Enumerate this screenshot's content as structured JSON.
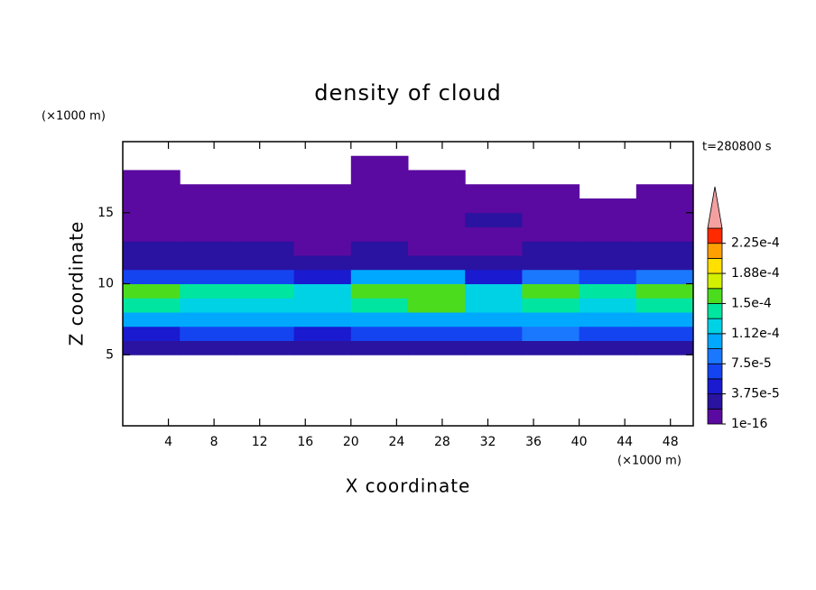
{
  "chart_data": {
    "type": "contour",
    "title": "density of cloud",
    "xlabel": "X coordinate",
    "ylabel": "Z coordinate",
    "x_unit": "(×1000 m)",
    "y_unit": "(×1000 m)",
    "time_label": "t=280800 s",
    "xlim": [
      0,
      50
    ],
    "ylim": [
      0,
      20
    ],
    "xticks": [
      4,
      8,
      12,
      16,
      20,
      24,
      28,
      32,
      36,
      40,
      44,
      48
    ],
    "yticks": [
      5,
      10,
      15
    ],
    "x": [
      2.5,
      7.5,
      12.5,
      17.5,
      22.5,
      27.5,
      32.5,
      37.5,
      42.5,
      47.5
    ],
    "z": [
      5.5,
      6.5,
      7.5,
      8.5,
      9.5,
      10.5,
      11.5,
      12.5,
      13.5,
      14.5,
      15.5,
      16.5,
      17.5,
      18.5
    ],
    "values": [
      [
        2e-05,
        2e-05,
        2.5e-05,
        2e-05,
        3e-05,
        2e-05,
        2e-05,
        3e-05,
        2e-05,
        2e-05
      ],
      [
        5e-05,
        6e-05,
        6e-05,
        5e-05,
        7e-05,
        6e-05,
        6e-05,
        8e-05,
        6e-05,
        6e-05
      ],
      [
        0.00011,
        0.0001,
        0.000105,
        0.0001,
        0.00011,
        0.00011,
        0.0001,
        0.00011,
        0.000105,
        0.00011
      ],
      [
        0.00014,
        0.00013,
        0.00013,
        0.000125,
        0.00014,
        0.00015,
        0.00013,
        0.00014,
        0.00013,
        0.00014
      ],
      [
        0.00016,
        0.00014,
        0.000135,
        0.00013,
        0.000155,
        0.00016,
        0.00012,
        0.00015,
        0.000145,
        0.000165
      ],
      [
        7e-05,
        6e-05,
        6e-05,
        5e-05,
        0.0001,
        0.00011,
        5e-05,
        8e-05,
        7e-05,
        9e-05
      ],
      [
        3e-05,
        3e-05,
        2.5e-05,
        2e-05,
        3e-05,
        3e-05,
        2e-05,
        3e-05,
        3e-05,
        3e-05
      ],
      [
        2e-05,
        2e-05,
        2e-05,
        1.5e-05,
        2e-05,
        1e-05,
        1.5e-05,
        2e-05,
        2e-05,
        2e-05
      ],
      [
        1e-05,
        1.5e-05,
        1.5e-05,
        1e-05,
        1e-05,
        5e-06,
        1e-05,
        1.5e-05,
        1e-05,
        1e-05
      ],
      [
        1e-05,
        1e-05,
        1e-05,
        1e-05,
        1.5e-05,
        1e-05,
        2e-05,
        1e-05,
        1e-05,
        1e-05
      ],
      [
        5e-06,
        5e-06,
        5e-06,
        5e-06,
        5e-06,
        5e-06,
        5e-06,
        5e-06,
        5e-06,
        5e-06
      ],
      [
        1e-06,
        1e-06,
        1e-06,
        1e-06,
        1e-06,
        1e-06,
        1e-06,
        1e-06,
        null,
        1e-06
      ],
      [
        1e-06,
        null,
        null,
        null,
        1e-06,
        1e-06,
        null,
        null,
        null,
        null
      ],
      [
        null,
        null,
        null,
        null,
        1e-06,
        null,
        null,
        null,
        null,
        null
      ]
    ],
    "levels": [
      1e-16,
      1.875e-05,
      3.75e-05,
      5.625e-05,
      7.5e-05,
      9.375e-05,
      0.0001125,
      0.00013125,
      0.00015,
      0.00016875,
      0.0001875,
      0.00020625,
      0.000225
    ],
    "colors": [
      "#5a0aa0",
      "#2a13a0",
      "#1a1ad0",
      "#1444f0",
      "#1a78ff",
      "#00a8ff",
      "#00d2e6",
      "#00e6a0",
      "#4cdc1e",
      "#d2f000",
      "#ffe000",
      "#ffa000",
      "#ff2a00"
    ],
    "extend_color": "#f4a0a0",
    "clim": [
      1e-16,
      0.00024375
    ],
    "cticks": [
      {
        "value": 1e-16,
        "label": "1e-16"
      },
      {
        "value": 3.75e-05,
        "label": "3.75e-5"
      },
      {
        "value": 7.5e-05,
        "label": "7.5e-5"
      },
      {
        "value": 0.0001125,
        "label": "1.12e-4"
      },
      {
        "value": 0.00015,
        "label": "1.5e-4"
      },
      {
        "value": 0.0001875,
        "label": "1.88e-4"
      },
      {
        "value": 0.000225,
        "label": "2.25e-4"
      }
    ]
  }
}
